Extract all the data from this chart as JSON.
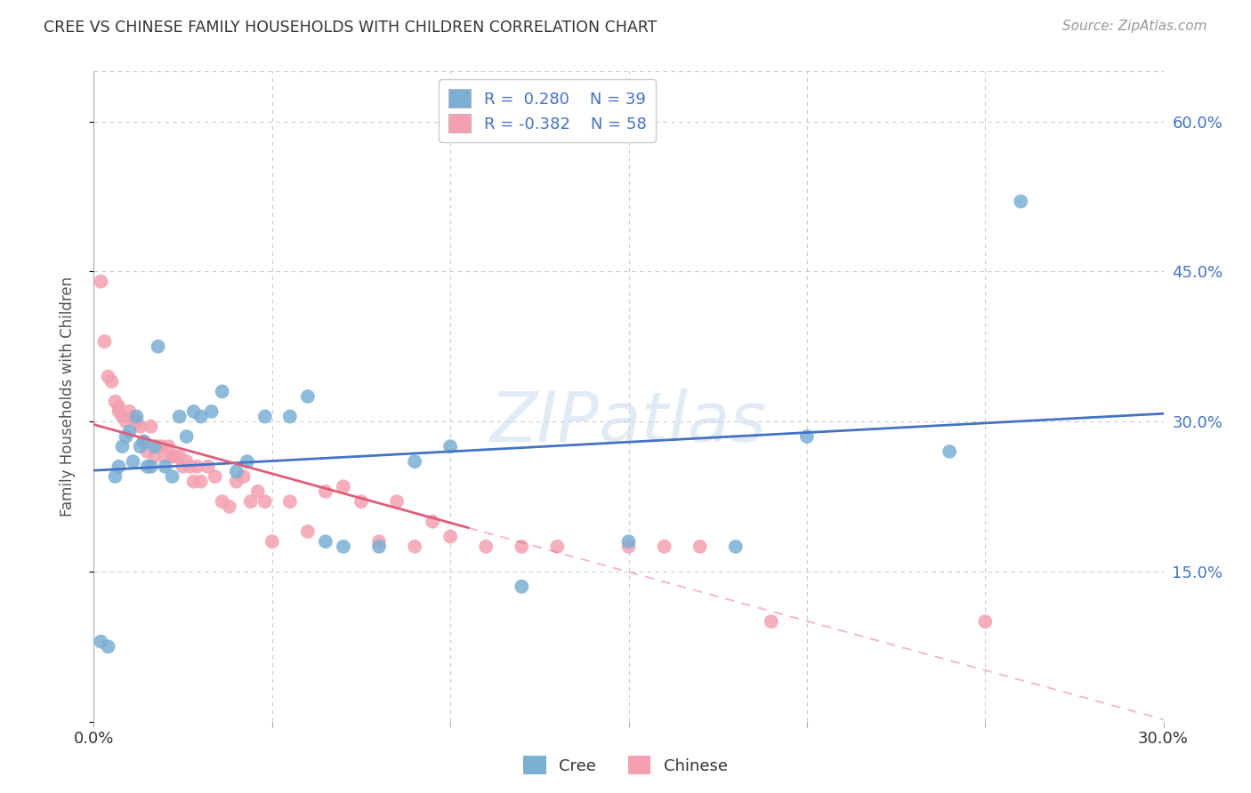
{
  "title": "CREE VS CHINESE FAMILY HOUSEHOLDS WITH CHILDREN CORRELATION CHART",
  "source": "Source: ZipAtlas.com",
  "ylabel": "Family Households with Children",
  "xlim": [
    0.0,
    0.3
  ],
  "ylim": [
    0.0,
    0.65
  ],
  "xticks": [
    0.0,
    0.05,
    0.1,
    0.15,
    0.2,
    0.25,
    0.3
  ],
  "xticklabels": [
    "0.0%",
    "",
    "",
    "",
    "",
    "",
    "30.0%"
  ],
  "yticks": [
    0.0,
    0.15,
    0.3,
    0.45,
    0.6
  ],
  "yticklabels_right": [
    "",
    "15.0%",
    "30.0%",
    "45.0%",
    "60.0%"
  ],
  "cree_color": "#7bafd4",
  "chinese_color": "#f4a0b0",
  "cree_line_color": "#4472c4",
  "chinese_line_color": "#e05c78",
  "R_cree": 0.28,
  "N_cree": 39,
  "R_chinese": -0.382,
  "N_chinese": 58,
  "background_color": "#ffffff",
  "grid_color": "#cccccc",
  "watermark": "ZIPatlas",
  "cree_scatter_x": [
    0.002,
    0.004,
    0.006,
    0.007,
    0.008,
    0.009,
    0.01,
    0.011,
    0.012,
    0.013,
    0.014,
    0.015,
    0.016,
    0.017,
    0.018,
    0.02,
    0.022,
    0.024,
    0.026,
    0.028,
    0.03,
    0.033,
    0.036,
    0.04,
    0.043,
    0.048,
    0.055,
    0.06,
    0.065,
    0.07,
    0.08,
    0.09,
    0.1,
    0.12,
    0.15,
    0.18,
    0.2,
    0.24,
    0.26
  ],
  "cree_scatter_y": [
    0.08,
    0.075,
    0.245,
    0.255,
    0.275,
    0.285,
    0.29,
    0.26,
    0.305,
    0.275,
    0.28,
    0.255,
    0.255,
    0.275,
    0.375,
    0.255,
    0.245,
    0.305,
    0.285,
    0.31,
    0.305,
    0.31,
    0.33,
    0.25,
    0.26,
    0.305,
    0.305,
    0.325,
    0.18,
    0.175,
    0.175,
    0.26,
    0.275,
    0.135,
    0.18,
    0.175,
    0.285,
    0.27,
    0.52
  ],
  "chinese_scatter_x": [
    0.002,
    0.003,
    0.004,
    0.005,
    0.006,
    0.007,
    0.007,
    0.008,
    0.009,
    0.01,
    0.011,
    0.012,
    0.013,
    0.014,
    0.015,
    0.016,
    0.017,
    0.018,
    0.019,
    0.02,
    0.021,
    0.022,
    0.023,
    0.024,
    0.025,
    0.026,
    0.027,
    0.028,
    0.029,
    0.03,
    0.032,
    0.034,
    0.036,
    0.038,
    0.04,
    0.042,
    0.044,
    0.046,
    0.048,
    0.05,
    0.055,
    0.06,
    0.065,
    0.07,
    0.075,
    0.08,
    0.085,
    0.09,
    0.095,
    0.1,
    0.11,
    0.12,
    0.13,
    0.15,
    0.16,
    0.17,
    0.19,
    0.25
  ],
  "chinese_scatter_y": [
    0.44,
    0.38,
    0.345,
    0.34,
    0.32,
    0.315,
    0.31,
    0.305,
    0.3,
    0.31,
    0.305,
    0.3,
    0.295,
    0.28,
    0.27,
    0.295,
    0.265,
    0.275,
    0.275,
    0.265,
    0.275,
    0.265,
    0.265,
    0.265,
    0.255,
    0.26,
    0.255,
    0.24,
    0.255,
    0.24,
    0.255,
    0.245,
    0.22,
    0.215,
    0.24,
    0.245,
    0.22,
    0.23,
    0.22,
    0.18,
    0.22,
    0.19,
    0.23,
    0.235,
    0.22,
    0.18,
    0.22,
    0.175,
    0.2,
    0.185,
    0.175,
    0.175,
    0.175,
    0.175,
    0.175,
    0.175,
    0.1,
    0.1
  ]
}
